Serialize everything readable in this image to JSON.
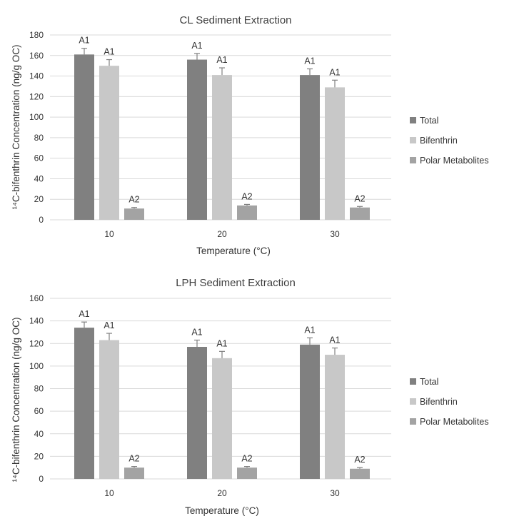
{
  "chart_data": [
    {
      "type": "bar",
      "title": "CL Sediment Extraction",
      "xlabel": "Temperature (°C)",
      "ylabel": "¹⁴C-bifenthrin Concentration (ng/g OC)",
      "categories": [
        "10",
        "20",
        "30"
      ],
      "ylim": [
        0,
        180
      ],
      "yticks": [
        0,
        20,
        40,
        60,
        80,
        100,
        120,
        140,
        160,
        180
      ],
      "legend_position": "right",
      "series": [
        {
          "name": "Total",
          "color": "#808080",
          "values": [
            161,
            156,
            141
          ],
          "errors": [
            6,
            6,
            6
          ],
          "labels": [
            "A1",
            "A1",
            "A1"
          ]
        },
        {
          "name": "Bifenthrin",
          "color": "#c8c8c8",
          "values": [
            150,
            141,
            129
          ],
          "errors": [
            6,
            7,
            7
          ],
          "labels": [
            "A1",
            "A1",
            "A1"
          ]
        },
        {
          "name": "Polar Metabolites",
          "color": "#a3a3a3",
          "values": [
            11,
            14,
            12
          ],
          "errors": [
            1,
            1,
            1
          ],
          "labels": [
            "A2",
            "A2",
            "A2"
          ]
        }
      ]
    },
    {
      "type": "bar",
      "title": "LPH Sediment Extraction",
      "xlabel": "Temperature (°C)",
      "ylabel": "¹⁴C-bifenthrin Concentration (ng/g OC)",
      "categories": [
        "10",
        "20",
        "30"
      ],
      "ylim": [
        0,
        160
      ],
      "yticks": [
        0,
        20,
        40,
        60,
        80,
        100,
        120,
        140,
        160
      ],
      "legend_position": "right",
      "series": [
        {
          "name": "Total",
          "color": "#808080",
          "values": [
            134,
            117,
            119
          ],
          "errors": [
            5,
            6,
            6
          ],
          "labels": [
            "A1",
            "A1",
            "A1"
          ]
        },
        {
          "name": "Bifenthrin",
          "color": "#c8c8c8",
          "values": [
            123,
            107,
            110
          ],
          "errors": [
            6,
            6,
            6
          ],
          "labels": [
            "A1",
            "A1",
            "A1"
          ]
        },
        {
          "name": "Polar Metabolites",
          "color": "#a3a3a3",
          "values": [
            10,
            10,
            9
          ],
          "errors": [
            1,
            1,
            1
          ],
          "labels": [
            "A2",
            "A2",
            "A2"
          ]
        }
      ]
    }
  ]
}
